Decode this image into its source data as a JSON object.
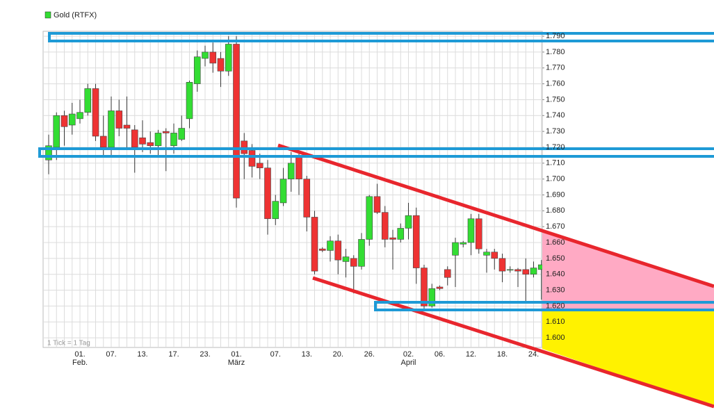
{
  "chart_data": {
    "type": "candlestick",
    "note": "1 Tick = 1 Tag",
    "up_color": "#33dd33",
    "down_color": "#ee3333",
    "grid": true,
    "categories": [
      null,
      null,
      null,
      null,
      "01.",
      null,
      null,
      null,
      "07.",
      null,
      null,
      null,
      "13.",
      null,
      null,
      null,
      "17.",
      null,
      null,
      null,
      "23.",
      null,
      null,
      null,
      "01.",
      null,
      null,
      null,
      null,
      "07.",
      null,
      null,
      null,
      "13.",
      null,
      null,
      null,
      "20.",
      null,
      null,
      null,
      "26.",
      null,
      null,
      null,
      null,
      "02.",
      null,
      null,
      null,
      "06.",
      null,
      null,
      null,
      "12.",
      null,
      null,
      null,
      "18.",
      null,
      null,
      null,
      "24.",
      null
    ],
    "months": [
      null,
      null,
      null,
      null,
      "Feb.",
      null,
      null,
      null,
      null,
      null,
      null,
      null,
      null,
      null,
      null,
      null,
      null,
      null,
      null,
      null,
      null,
      null,
      null,
      null,
      "März",
      null,
      null,
      null,
      null,
      null,
      null,
      null,
      null,
      null,
      null,
      null,
      null,
      null,
      null,
      null,
      null,
      null,
      null,
      null,
      null,
      null,
      "April",
      null,
      null,
      null,
      null,
      null,
      null,
      null,
      null,
      null,
      null,
      null,
      null,
      null,
      null,
      null,
      null,
      null
    ],
    "series": [
      {
        "name": "Gold (RTFX)",
        "open": [
          1.712,
          1.72,
          1.74,
          1.734,
          1.738,
          1.742,
          1.757,
          1.727,
          1.72,
          1.743,
          1.734,
          1.731,
          1.726,
          1.723,
          1.721,
          1.73,
          1.721,
          1.725,
          1.738,
          1.76,
          1.776,
          1.78,
          1.776,
          1.768,
          1.785,
          1.724,
          1.718,
          1.71,
          1.707,
          1.675,
          1.685,
          1.7,
          1.714,
          1.7,
          1.676,
          1.656,
          1.655,
          1.661,
          1.648,
          1.65,
          1.645,
          1.662,
          1.689,
          1.679,
          1.663,
          1.662,
          1.669,
          1.677,
          1.644,
          1.62,
          1.632,
          1.643,
          1.652,
          1.659,
          1.66,
          1.675,
          1.652,
          1.654,
          1.65,
          1.643,
          1.643,
          1.643,
          1.64,
          1.643
        ],
        "close": [
          1.721,
          1.74,
          1.733,
          1.741,
          1.742,
          1.757,
          1.727,
          1.72,
          1.743,
          1.732,
          1.732,
          1.72,
          1.722,
          1.721,
          1.729,
          1.729,
          1.729,
          1.732,
          1.761,
          1.777,
          1.78,
          1.773,
          1.768,
          1.785,
          1.688,
          1.716,
          1.708,
          1.707,
          1.675,
          1.686,
          1.7,
          1.71,
          1.7,
          1.676,
          1.642,
          1.655,
          1.661,
          1.649,
          1.651,
          1.645,
          1.662,
          1.689,
          1.679,
          1.662,
          1.662,
          1.669,
          1.677,
          1.644,
          1.62,
          1.631,
          1.631,
          1.638,
          1.66,
          1.66,
          1.675,
          1.656,
          1.654,
          1.65,
          1.642,
          1.643,
          1.642,
          1.64,
          1.644,
          1.646
        ],
        "high": [
          1.728,
          1.742,
          1.743,
          1.748,
          1.75,
          1.76,
          1.76,
          1.74,
          1.752,
          1.75,
          1.752,
          1.734,
          1.737,
          1.73,
          1.731,
          1.732,
          1.735,
          1.74,
          1.762,
          1.781,
          1.784,
          1.786,
          1.78,
          1.79,
          1.79,
          1.729,
          1.722,
          1.716,
          1.712,
          1.69,
          1.707,
          1.717,
          1.717,
          1.702,
          1.68,
          1.657,
          1.664,
          1.665,
          1.656,
          1.652,
          1.666,
          1.69,
          1.697,
          1.683,
          1.668,
          1.672,
          1.685,
          1.682,
          1.646,
          1.634,
          1.633,
          1.645,
          1.663,
          1.661,
          1.678,
          1.678,
          1.656,
          1.656,
          1.653,
          1.645,
          1.644,
          1.65,
          1.648,
          1.649
        ],
        "low": [
          1.703,
          1.712,
          1.721,
          1.728,
          1.735,
          1.74,
          1.724,
          1.715,
          1.715,
          1.727,
          1.72,
          1.704,
          1.717,
          1.716,
          1.715,
          1.705,
          1.716,
          1.724,
          1.732,
          1.755,
          1.771,
          1.767,
          1.758,
          1.765,
          1.682,
          1.7,
          1.701,
          1.7,
          1.665,
          1.671,
          1.683,
          1.692,
          1.69,
          1.667,
          1.64,
          1.654,
          1.648,
          1.64,
          1.638,
          1.628,
          1.643,
          1.658,
          1.678,
          1.657,
          1.643,
          1.66,
          1.662,
          1.634,
          1.617,
          1.619,
          1.63,
          1.633,
          1.632,
          1.657,
          1.652,
          1.653,
          1.641,
          1.643,
          1.635,
          1.641,
          1.632,
          1.623,
          1.638,
          1.624
        ]
      }
    ],
    "ylim": [
      1.5939,
      1.7931
    ],
    "yticks": [
      {
        "value": 1.6,
        "label": "1.600"
      },
      {
        "value": 1.61,
        "label": "1.610"
      },
      {
        "value": 1.62,
        "label": "1.620"
      },
      {
        "value": 1.63,
        "label": "1.630"
      },
      {
        "value": 1.64,
        "label": "1.640"
      },
      {
        "value": 1.65,
        "label": "1.650"
      },
      {
        "value": 1.66,
        "label": "1.660"
      },
      {
        "value": 1.67,
        "label": "1.670"
      },
      {
        "value": 1.68,
        "label": "1.680"
      },
      {
        "value": 1.69,
        "label": "1.690"
      },
      {
        "value": 1.7,
        "label": "1.700"
      },
      {
        "value": 1.71,
        "label": "1.710"
      },
      {
        "value": 1.72,
        "label": "1.720"
      },
      {
        "value": 1.73,
        "label": "1.730"
      },
      {
        "value": 1.74,
        "label": "1.740"
      },
      {
        "value": 1.75,
        "label": "1.750"
      },
      {
        "value": 1.76,
        "label": "1.760"
      },
      {
        "value": 1.77,
        "label": "1.770"
      },
      {
        "value": 1.78,
        "label": "1.780"
      },
      {
        "value": 1.79,
        "label": "1.790"
      }
    ]
  }
}
